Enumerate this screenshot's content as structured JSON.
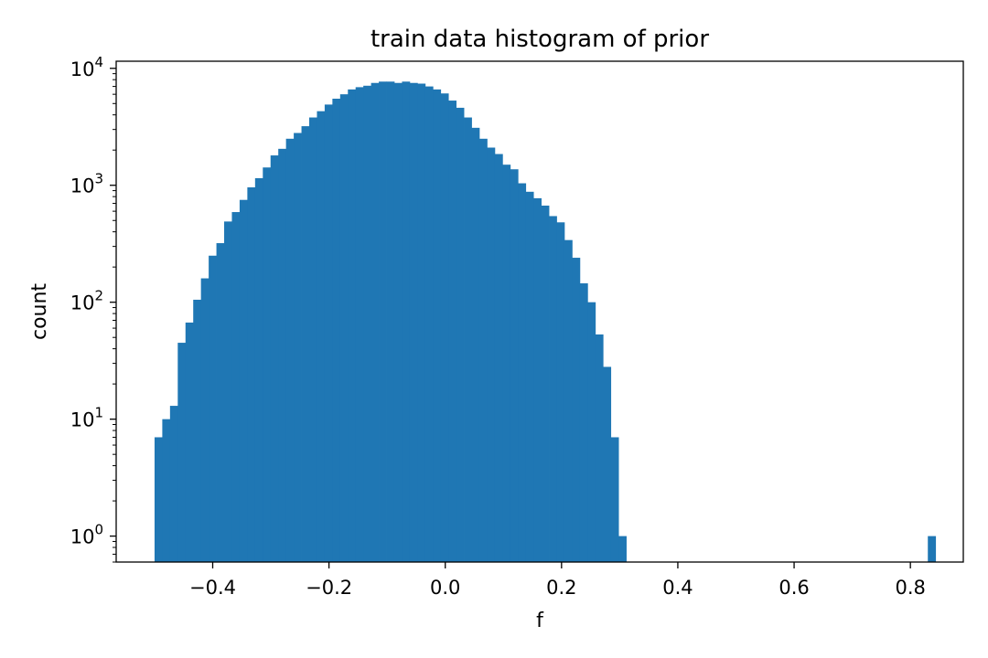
{
  "chart_data": {
    "type": "bar",
    "subtype": "histogram",
    "title": "train data histogram of prior",
    "xlabel": "f",
    "ylabel": "count",
    "yscale": "log",
    "xlim": [
      -0.566,
      0.891
    ],
    "ylim": [
      0.6,
      11500
    ],
    "grid": false,
    "legend": null,
    "bar_color": "#1f77b4",
    "x_ticks": [
      {
        "value": -0.4,
        "label": "−0.4"
      },
      {
        "value": -0.2,
        "label": "−0.2"
      },
      {
        "value": 0.0,
        "label": "0.0"
      },
      {
        "value": 0.2,
        "label": "0.2"
      },
      {
        "value": 0.4,
        "label": "0.4"
      },
      {
        "value": 0.6,
        "label": "0.6"
      },
      {
        "value": 0.8,
        "label": "0.8"
      }
    ],
    "y_ticks": [
      {
        "value": 1,
        "base": "10",
        "exp": "0"
      },
      {
        "value": 10,
        "base": "10",
        "exp": "1"
      },
      {
        "value": 100,
        "base": "10",
        "exp": "2"
      },
      {
        "value": 1000,
        "base": "10",
        "exp": "3"
      },
      {
        "value": 10000,
        "base": "10",
        "exp": "4"
      }
    ],
    "bin_start": -0.5,
    "bin_width": 0.0133,
    "values": [
      7,
      10,
      13,
      45,
      67,
      105,
      160,
      250,
      320,
      490,
      590,
      750,
      960,
      1150,
      1420,
      1800,
      2050,
      2500,
      2800,
      3200,
      3800,
      4300,
      4900,
      5500,
      6000,
      6600,
      6900,
      7100,
      7500,
      7700,
      7700,
      7500,
      7700,
      7500,
      7400,
      7000,
      6600,
      6100,
      5300,
      4600,
      3800,
      3100,
      2500,
      2100,
      1850,
      1500,
      1370,
      1040,
      880,
      775,
      670,
      545,
      482,
      340,
      240,
      145,
      100,
      53,
      28,
      7,
      1,
      0,
      0,
      0,
      0,
      0,
      0,
      0,
      0,
      0,
      0,
      0,
      0,
      0,
      0,
      0,
      0,
      0,
      0,
      0,
      0,
      0,
      0,
      0,
      0,
      0,
      0,
      0,
      0,
      0,
      0,
      0,
      0,
      0,
      0,
      0,
      0,
      0,
      0,
      0,
      1
    ]
  }
}
